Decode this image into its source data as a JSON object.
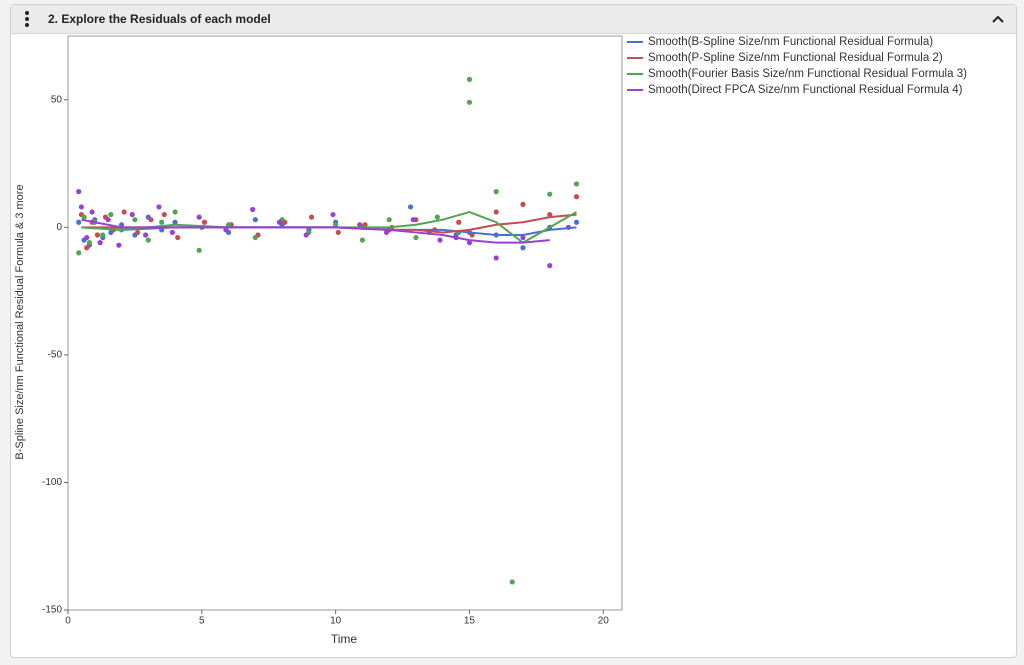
{
  "panel_title": "2. Explore the Residuals of each model",
  "chart_data": {
    "type": "scatter",
    "x_label": "Time",
    "y_label": "B-Spline Size/nm Functional Residual Formula & 3 more",
    "xlim": [
      0,
      20.7
    ],
    "ylim": [
      -150,
      75
    ],
    "xticks": [
      0,
      5,
      10,
      15,
      20
    ],
    "yticks": [
      -150,
      -100,
      -50,
      0,
      50
    ],
    "smooth_x": [
      0.5,
      2,
      4,
      6,
      8,
      10,
      12,
      13,
      14,
      15,
      16,
      17,
      18,
      19
    ],
    "series": [
      {
        "name": "Smooth(B-Spline Size/nm Functional Residual Formula)",
        "color": "#4a6fd1",
        "x": [
          0.4,
          0.6,
          0.8,
          1,
          1.3,
          1.6,
          2,
          2.5,
          3,
          3.5,
          4,
          5,
          6,
          7,
          8,
          9,
          10,
          11,
          12,
          12.8,
          13.5,
          14.5,
          15,
          16,
          17,
          18,
          19
        ],
        "values": [
          2,
          -5,
          -7,
          3,
          -4,
          -2,
          1,
          -3,
          4,
          -1,
          2,
          0,
          -2,
          3,
          1,
          -1,
          2,
          0,
          -1,
          8,
          -2,
          -3,
          -2,
          -3,
          -8,
          0,
          2
        ],
        "smooth": [
          0,
          -1,
          0,
          0,
          0,
          0,
          -1,
          -1,
          -1,
          -2,
          -3,
          -3,
          -1,
          0
        ]
      },
      {
        "name": "Smooth(P-Spline Size/nm Functional Residual Formula 2)",
        "color": "#c94c4c",
        "x": [
          0.5,
          0.7,
          0.9,
          1.1,
          1.4,
          1.7,
          2.1,
          2.6,
          3.1,
          3.6,
          4.1,
          5.1,
          6.1,
          7.1,
          8.1,
          9.1,
          10.1,
          11.1,
          12.1,
          13,
          13.7,
          14.6,
          15.1,
          16,
          17,
          18,
          19
        ],
        "values": [
          5,
          -8,
          2,
          -3,
          4,
          -1,
          6,
          -2,
          3,
          5,
          -4,
          2,
          1,
          -3,
          2,
          4,
          -2,
          1,
          0,
          3,
          -1,
          2,
          -3,
          6,
          9,
          5,
          12
        ],
        "smooth": [
          0,
          0,
          0,
          0,
          0,
          0,
          -1,
          -1,
          -2,
          -1,
          1,
          2,
          4,
          5
        ]
      },
      {
        "name": "Smooth(Fourier Basis Size/nm Functional Residual Formula 3)",
        "color": "#4fa64f",
        "x": [
          0.4,
          0.6,
          0.8,
          1,
          1.3,
          1.6,
          2,
          2.5,
          3,
          3.5,
          4,
          4.9,
          6,
          7,
          8,
          9,
          10,
          11,
          12,
          13,
          13.8,
          14.6,
          15,
          15,
          16,
          16.6,
          18,
          19
        ],
        "values": [
          -10,
          4,
          -6,
          2,
          -3,
          5,
          -1,
          3,
          -5,
          2,
          6,
          -9,
          1,
          -4,
          3,
          -2,
          1,
          -5,
          3,
          -4,
          4,
          -2,
          58,
          49,
          14,
          -139,
          13,
          17
        ],
        "smooth": [
          0,
          -1,
          1,
          0,
          0,
          0,
          0,
          1,
          3,
          6,
          2,
          -6,
          0,
          6
        ]
      },
      {
        "name": "Smooth(Direct FPCA Size/nm Functional Residual Formula 4)",
        "color": "#9b3fd6",
        "x": [
          0.4,
          0.5,
          0.7,
          0.9,
          1.2,
          1.5,
          1.9,
          2.4,
          2.9,
          3.4,
          3.9,
          4.9,
          5.9,
          6.9,
          7.9,
          8.9,
          9.9,
          10.9,
          11.9,
          12.9,
          13.9,
          14.5,
          15,
          16,
          17,
          18,
          18.7
        ],
        "values": [
          14,
          8,
          -4,
          6,
          -6,
          3,
          -7,
          5,
          -3,
          8,
          -2,
          4,
          -1,
          7,
          2,
          -3,
          5,
          1,
          -2,
          3,
          -5,
          -4,
          -6,
          -12,
          -4,
          -15,
          0
        ],
        "smooth": [
          3,
          0,
          0,
          0,
          0,
          0,
          -1,
          -2,
          -3,
          -5,
          -6,
          -6,
          -5,
          null
        ]
      }
    ]
  }
}
